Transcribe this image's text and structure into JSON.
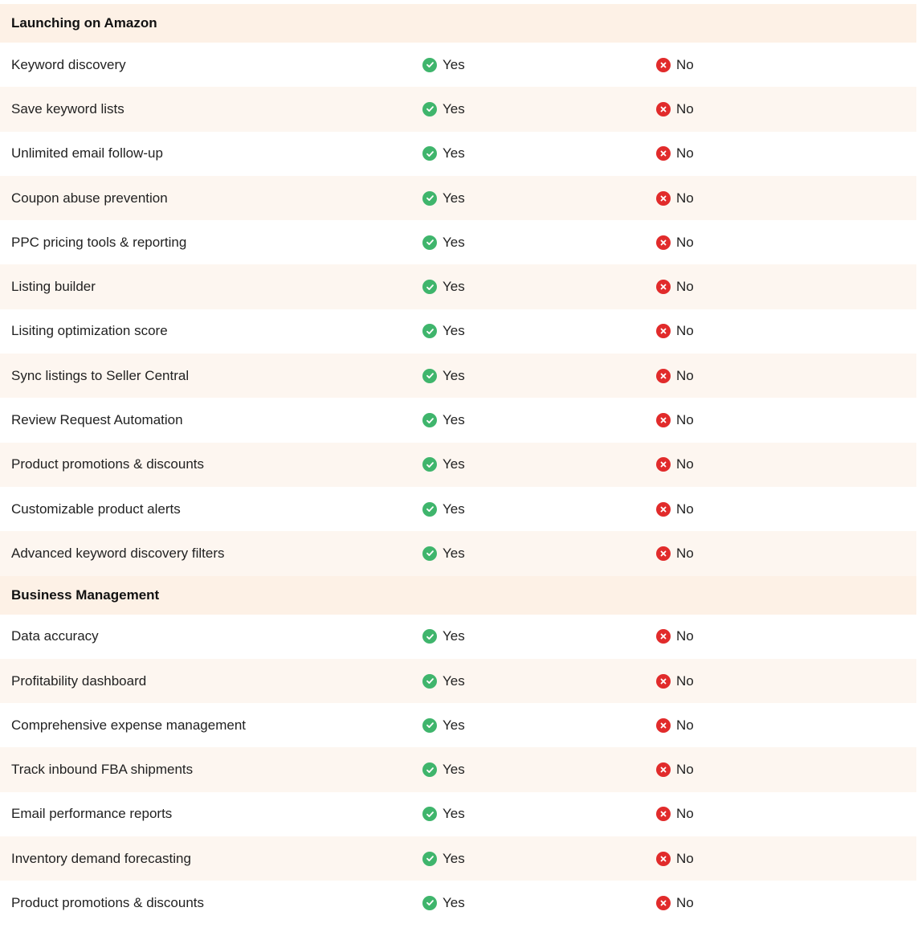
{
  "colors": {
    "yes": "#3fb56c",
    "no": "#e12b2b",
    "header_bg": "#fdf1e6",
    "alt_row_bg": "#fdf6f0"
  },
  "sections": [
    {
      "title": "Launching on Amazon",
      "rows": [
        {
          "feature": "Keyword discovery",
          "a": "Yes",
          "b": "No"
        },
        {
          "feature": "Save keyword lists",
          "a": "Yes",
          "b": "No"
        },
        {
          "feature": "Unlimited email follow-up",
          "a": "Yes",
          "b": "No"
        },
        {
          "feature": "Coupon abuse prevention",
          "a": "Yes",
          "b": "No"
        },
        {
          "feature": "PPC pricing tools & reporting",
          "a": "Yes",
          "b": "No"
        },
        {
          "feature": "Listing builder",
          "a": "Yes",
          "b": "No"
        },
        {
          "feature": "Lisiting optimization score",
          "a": "Yes",
          "b": "No"
        },
        {
          "feature": "Sync listings to Seller Central",
          "a": "Yes",
          "b": "No"
        },
        {
          "feature": "Review Request Automation",
          "a": "Yes",
          "b": "No"
        },
        {
          "feature": "Product promotions & discounts",
          "a": "Yes",
          "b": "No"
        },
        {
          "feature": "Customizable product alerts",
          "a": "Yes",
          "b": "No"
        },
        {
          "feature": "Advanced keyword discovery filters",
          "a": "Yes",
          "b": "No"
        }
      ]
    },
    {
      "title": "Business Management",
      "rows": [
        {
          "feature": "Data accuracy",
          "a": "Yes",
          "b": "No"
        },
        {
          "feature": "Profitability dashboard",
          "a": "Yes",
          "b": "No"
        },
        {
          "feature": "Comprehensive expense management",
          "a": "Yes",
          "b": "No"
        },
        {
          "feature": "Track inbound FBA shipments",
          "a": "Yes",
          "b": "No"
        },
        {
          "feature": "Email performance reports",
          "a": "Yes",
          "b": "No"
        },
        {
          "feature": "Inventory demand forecasting",
          "a": "Yes",
          "b": "No"
        },
        {
          "feature": "Product promotions & discounts",
          "a": "Yes",
          "b": "No"
        }
      ]
    }
  ]
}
